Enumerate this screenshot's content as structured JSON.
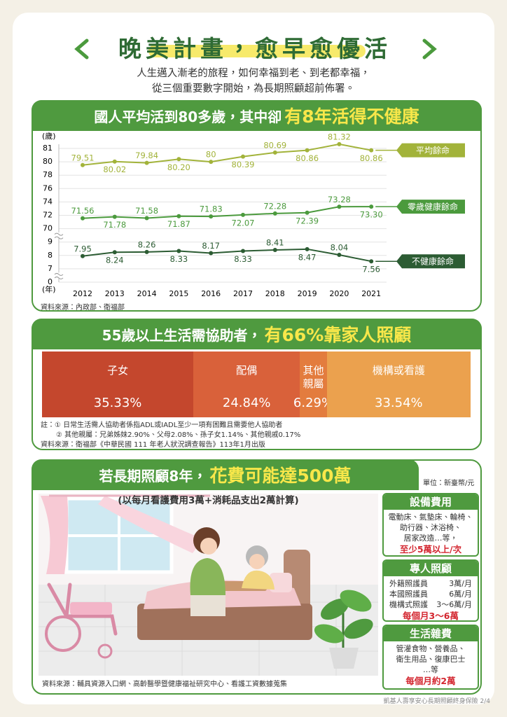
{
  "header": {
    "title": "晚美計畫，愈早愈優活",
    "subtitle": [
      "人生邁入漸老的旅程，如何幸福到老、到老都幸福，",
      "從三個重要數字開始，為長期照顧超前佈署。"
    ]
  },
  "section1": {
    "title": "國人平均活到80多歲，其中卻",
    "highlight": "有8年活得不健康",
    "source": "資料來源：內政部、衛福部"
  },
  "chart_data": [
    {
      "type": "line",
      "y_label": "(歲)",
      "x_label": "(年)",
      "categories": [
        "2012",
        "2013",
        "2014",
        "2015",
        "2016",
        "2017",
        "2018",
        "2019",
        "2020",
        "2021"
      ],
      "ylim": [
        0,
        81
      ],
      "yticks": [
        0,
        7,
        8,
        9,
        70,
        72,
        74,
        76,
        78,
        80,
        81
      ],
      "axis_break": true,
      "grid": true,
      "series": [
        {
          "name": "平均餘命",
          "color": "#a2b33a",
          "values": [
            79.51,
            80.02,
            79.84,
            80.2,
            80,
            80.39,
            80.69,
            80.86,
            81.32,
            80.86
          ],
          "value_labels": [
            "79.51",
            "80.02",
            "79.84",
            "80.20",
            "80",
            "80.39",
            "80.69",
            "80.86",
            "81.32",
            "80.86"
          ]
        },
        {
          "name": "零歲健康餘命",
          "color": "#4b9a3d",
          "values": [
            71.56,
            71.78,
            71.58,
            71.87,
            71.83,
            72.07,
            72.28,
            72.39,
            73.28,
            73.3
          ],
          "value_labels": [
            "71.56",
            "71.78",
            "71.58",
            "71.87",
            "71.83",
            "72.07",
            "72.28",
            "72.39",
            "73.28",
            "73.30"
          ]
        },
        {
          "name": "不健康餘命",
          "color": "#2c5c33",
          "values": [
            7.95,
            8.24,
            8.26,
            8.33,
            8.17,
            8.33,
            8.41,
            8.47,
            8.04,
            7.56
          ],
          "value_labels": [
            "7.95",
            "8.24",
            "8.26",
            "8.33",
            "8.17",
            "8.33",
            "8.41",
            "8.47",
            "8.04",
            "7.56"
          ]
        }
      ]
    },
    {
      "type": "stacked-bar",
      "categories": [
        "子女",
        "配偶",
        "其他親屬",
        "機構或看護"
      ],
      "values": [
        35.33,
        24.84,
        6.29,
        33.54
      ],
      "value_labels": [
        "35.33%",
        "24.84%",
        "6.29%",
        "33.54%"
      ],
      "colors": [
        "#c4472d",
        "#d9613a",
        "#e37c3e",
        "#eba14e"
      ]
    }
  ],
  "section2": {
    "title": "55歲以上生活需協助者，",
    "highlight": "有66%靠家人照顧",
    "notes": [
      "註：① 日常生活需人協助者係指ADL或IADL至少一項有困難且需要他人協助者",
      "② 其他親屬：兄弟姊妹2.90%、父母2.08%、孫子女1.14%、其他親戚0.17%"
    ],
    "source": "資料來源：衛福部《中華民國 111 年老人狀況調查報告》113年1月出版"
  },
  "section3": {
    "title": "若長期照顧8年，",
    "highlight": "花費可能達500萬",
    "unit": "單位：新臺幣/元",
    "subtitle": "(以每月看護費用3萬+消耗品支出2萬計算)",
    "cards": [
      {
        "title": "設備費用",
        "lines": [
          "電動床、氣墊床、輪椅、",
          "助行器、沐浴椅、",
          "居家改造…等，"
        ],
        "highlight": "至少5萬以上/次"
      },
      {
        "title": "專人照顧",
        "rows": [
          [
            "外籍照護員",
            "3萬/月"
          ],
          [
            "本國照護員",
            "6萬/月"
          ],
          [
            "機構式照護",
            "3～6萬/月"
          ]
        ],
        "highlight": "每個月3～6萬"
      },
      {
        "title": "生活雜費",
        "lines": [
          "管灌食物、營養品、",
          "衛生用品、復康巴士",
          "…等"
        ],
        "highlight": "每個月約2萬"
      }
    ],
    "source": "資料來源：輔具資源入口網、高齡醫學暨健康福祉研究中心、看護工資數據蒐集"
  },
  "footer": "凱基人壽享安心長期照顧終身保險 2/4"
}
